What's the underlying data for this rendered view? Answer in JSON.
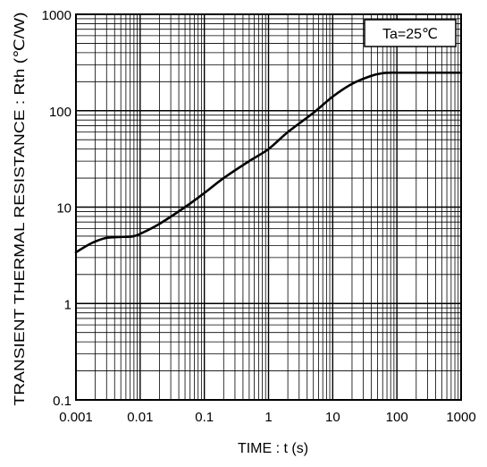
{
  "chart_data": {
    "type": "line",
    "xlabel": "TIME : t (s)",
    "ylabel": "TRANSIENT THERMAL RESISTANCE : Rth (℃/W)",
    "x_scale": "log",
    "y_scale": "log",
    "xlim": [
      0.001,
      1000
    ],
    "ylim": [
      0.1,
      1000
    ],
    "x_ticks": [
      "0.001",
      "0.01",
      "0.1",
      "1",
      "10",
      "100",
      "1000"
    ],
    "y_ticks": [
      "0.1",
      "1",
      "10",
      "100",
      "1000"
    ],
    "grid": true,
    "annotation": "Ta=25℃",
    "series": [
      {
        "x": [
          0.001,
          0.0015,
          0.002,
          0.003,
          0.005,
          0.008,
          0.012,
          0.02,
          0.05,
          0.1,
          0.2,
          0.5,
          1,
          2,
          5,
          10,
          20,
          40,
          60,
          80,
          100,
          200,
          500,
          1000
        ],
        "y": [
          3.4,
          4.0,
          4.4,
          4.8,
          4.9,
          5.0,
          5.6,
          6.7,
          10,
          14,
          20,
          30,
          40,
          60,
          95,
          140,
          190,
          230,
          245,
          248,
          248,
          248,
          248,
          248
        ]
      }
    ]
  }
}
